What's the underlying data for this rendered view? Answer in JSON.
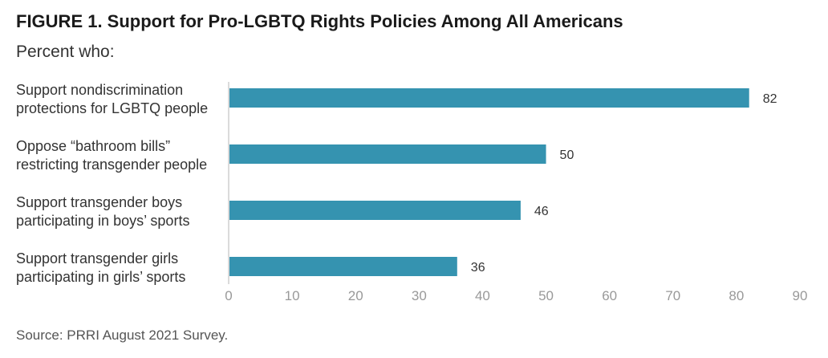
{
  "title": "FIGURE 1.  Support for Pro-LGBTQ Rights Policies Among All Americans",
  "subtitle": "Percent who:",
  "source": "Source: PRRI August 2021 Survey.",
  "chart_data": {
    "type": "bar",
    "orientation": "horizontal",
    "categories": [
      [
        "Support nondiscrimination",
        "protections for LGBTQ people"
      ],
      [
        "Oppose “bathroom bills”",
        "restricting transgender people"
      ],
      [
        "Support transgender boys",
        "participating in boys’ sports"
      ],
      [
        "Support transgender girls",
        "participating in girls’ sports"
      ]
    ],
    "values": [
      82,
      50,
      46,
      36
    ],
    "xlim": [
      0,
      90
    ],
    "xticks": [
      0,
      10,
      20,
      30,
      40,
      50,
      60,
      70,
      80,
      90
    ],
    "bar_color": "#3593b0",
    "grid": false,
    "legend": "none"
  }
}
